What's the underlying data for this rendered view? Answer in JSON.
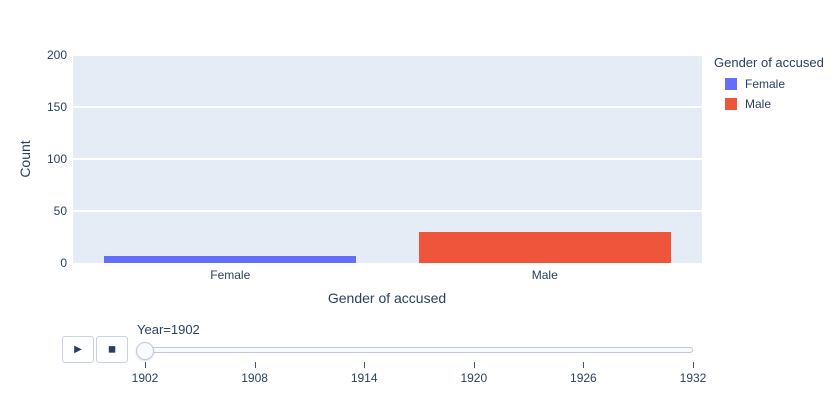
{
  "colors": {
    "plot_background": "#E5ECF6",
    "gridline": "#FFFFFF",
    "text": "#2a3f5f",
    "female": "#636EFA",
    "male": "#EF553B"
  },
  "chart_data": {
    "type": "bar",
    "title": "",
    "categories": [
      "Female",
      "Male"
    ],
    "values": [
      7,
      30
    ],
    "bar_colors": [
      "#636EFA",
      "#EF553B"
    ],
    "xlabel": "Gender of accused",
    "ylabel": "Count",
    "ylim": [
      0,
      200
    ],
    "yticks": [
      0,
      50,
      100,
      150,
      200
    ],
    "grid": true,
    "legend_position": "right"
  },
  "legend": {
    "title": "Gender of accused",
    "items": [
      {
        "label": "Female",
        "color": "#636EFA"
      },
      {
        "label": "Male",
        "color": "#EF553B"
      }
    ]
  },
  "animation_controls": {
    "play_icon": "▶",
    "stop_icon": "◼",
    "slider_label": "Year=1902",
    "slider_value": "1902",
    "slider_ticks": [
      "1902",
      "1908",
      "1914",
      "1920",
      "1926",
      "1932"
    ]
  }
}
